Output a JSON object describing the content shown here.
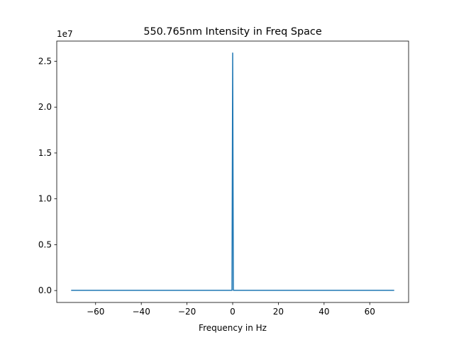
{
  "chart_data": {
    "type": "line",
    "title": "550.765nm Intensity in Freq Space",
    "xlabel": "Frequency in Hz",
    "ylabel": "",
    "y_offset_label": "1e7",
    "xlim": [
      -77,
      77
    ],
    "ylim": [
      -1300000,
      27200000
    ],
    "x_ticks": [
      -60,
      -40,
      -20,
      0,
      20,
      40,
      60
    ],
    "x_tick_labels": [
      "−60",
      "−40",
      "−20",
      "0",
      "20",
      "40",
      "60"
    ],
    "y_ticks": [
      0,
      5000000,
      10000000,
      15000000,
      20000000,
      25000000
    ],
    "y_tick_labels": [
      "0.0",
      "0.5",
      "1.0",
      "1.5",
      "2.0",
      "2.5"
    ],
    "grid": false,
    "series": [
      {
        "color": "#1f77b4",
        "x": [
          -70.7,
          -0.3,
          0,
          0.3,
          70.7
        ],
        "y": [
          20000,
          20000,
          25900000,
          20000,
          20000
        ]
      }
    ]
  }
}
